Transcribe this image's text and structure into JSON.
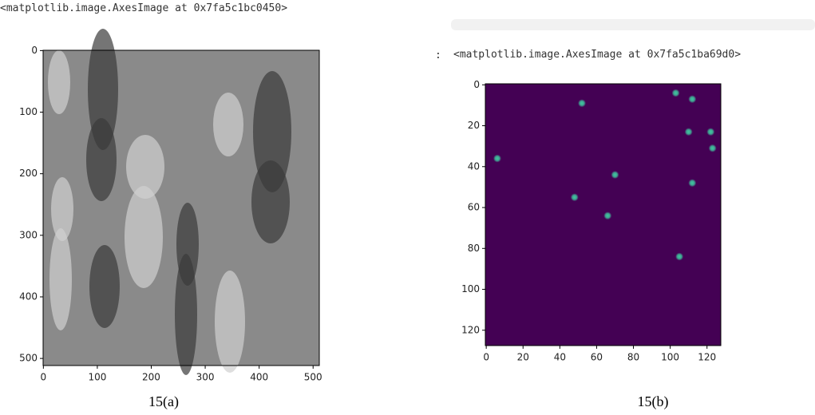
{
  "chart_data": [
    {
      "type": "image",
      "title": "<matplotlib.image.AxesImage at 0x7fa5c1bc0450>",
      "caption": "15(a)",
      "xlim": [
        -0.5,
        511.5
      ],
      "ylim": [
        511.5,
        -0.5
      ],
      "xticks": [
        0,
        100,
        200,
        300,
        400,
        500
      ],
      "yticks": [
        0,
        100,
        200,
        300,
        400,
        500
      ],
      "color": "#8a8a8a"
    },
    {
      "type": "scatter",
      "title": "<matplotlib.image.AxesImage at 0x7fa5c1ba69d0>",
      "caption": "15(b)",
      "xlim": [
        -0.5,
        127.5
      ],
      "ylim": [
        127.5,
        -0.5
      ],
      "xticks": [
        0,
        20,
        40,
        60,
        80,
        100,
        120
      ],
      "yticks": [
        0,
        20,
        40,
        60,
        80,
        100,
        120
      ],
      "background": "#440154",
      "color": "#3fc9a0",
      "x": [
        52,
        103,
        112,
        110,
        122,
        123,
        6,
        70,
        112,
        48,
        66,
        105
      ],
      "y": [
        9,
        4,
        7,
        23,
        23,
        31,
        36,
        44,
        48,
        55,
        64,
        84
      ]
    }
  ]
}
